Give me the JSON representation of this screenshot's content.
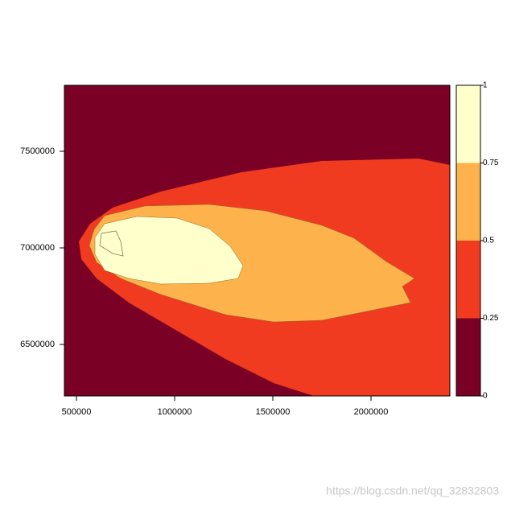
{
  "chart_data": {
    "type": "raster",
    "xlim": [
      438500,
      2401600
    ],
    "ylim": [
      6233300,
      7841700
    ],
    "xticks": [
      500000,
      1000000,
      1500000,
      2000000
    ],
    "yticks": [
      6500000,
      7000000,
      7500000
    ],
    "legend": {
      "breaks": [
        0,
        0.25,
        0.5,
        0.75,
        1
      ],
      "colors": [
        "#7a0025",
        "#f03b20",
        "#feb24c",
        "#ffffcc"
      ]
    },
    "watermark": "https://blog.csdn.net/qq_32832803"
  }
}
